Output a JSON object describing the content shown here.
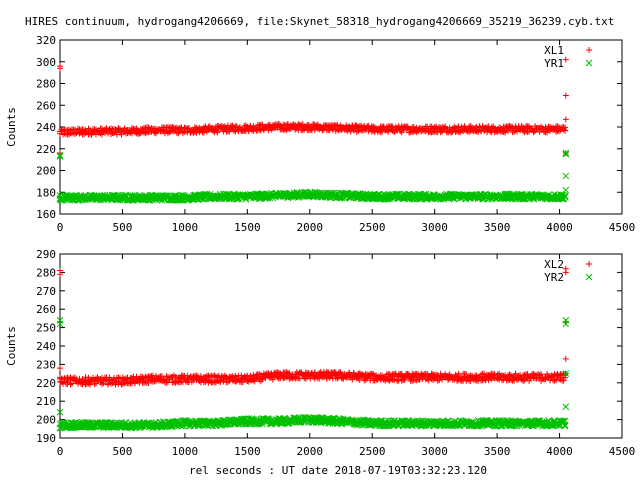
{
  "figure": {
    "title": "HIRES continuum, hydrogang4206669, file:Skynet_58318_hydrogang4206669_35219_36239.cyb.txt",
    "xlabel": "rel seconds : UT date 2018-07-19T03:32:23.120"
  },
  "colors": {
    "red": "#ff0000",
    "green": "#00c000"
  },
  "chart_data": [
    {
      "type": "scatter",
      "ylabel": "Counts",
      "xlim": [
        0,
        4500
      ],
      "ylim": [
        160,
        320
      ],
      "xticks": [
        0,
        500,
        1000,
        1500,
        2000,
        2500,
        3000,
        3500,
        4000,
        4500
      ],
      "yticks": [
        160,
        180,
        200,
        220,
        240,
        260,
        280,
        300,
        320
      ],
      "legend_position": "top-right",
      "series": [
        {
          "name": "XL1",
          "marker": "+",
          "color": "#ff0000",
          "band_x": [
            0,
            250,
            500,
            750,
            1000,
            1250,
            1500,
            1750,
            2000,
            2250,
            2500,
            2750,
            3000,
            3250,
            3500,
            3750,
            4050
          ],
          "band_y": [
            235,
            236,
            236,
            237,
            237,
            238,
            239,
            240,
            240,
            239,
            238,
            238,
            238,
            238,
            238,
            238,
            238
          ],
          "band_spread": 3,
          "outliers": [
            [
              0,
              296
            ],
            [
              0,
              294
            ],
            [
              0,
              216
            ],
            [
              4050,
              302
            ],
            [
              4050,
              269
            ],
            [
              4050,
              247
            ],
            [
              4050,
              216
            ]
          ]
        },
        {
          "name": "YR1",
          "marker": "x",
          "color": "#00c000",
          "band_x": [
            0,
            250,
            500,
            750,
            1000,
            1250,
            1500,
            1750,
            2000,
            2250,
            2500,
            2750,
            3000,
            3250,
            3500,
            3750,
            4050
          ],
          "band_y": [
            175,
            175,
            175,
            175,
            175,
            176,
            176,
            177,
            178,
            177,
            176,
            176,
            176,
            176,
            176,
            176,
            176
          ],
          "band_spread": 2.5,
          "outliers": [
            [
              0,
              214
            ],
            [
              0,
              213
            ],
            [
              4050,
              216
            ],
            [
              4050,
              215
            ],
            [
              4050,
              195
            ],
            [
              4050,
              182
            ]
          ]
        }
      ]
    },
    {
      "type": "scatter",
      "ylabel": "Counts",
      "xlim": [
        0,
        4500
      ],
      "ylim": [
        190,
        290
      ],
      "xticks": [
        0,
        500,
        1000,
        1500,
        2000,
        2500,
        3000,
        3500,
        4000,
        4500
      ],
      "yticks": [
        190,
        200,
        210,
        220,
        230,
        240,
        250,
        260,
        270,
        280,
        290
      ],
      "legend_position": "top-right",
      "series": [
        {
          "name": "XL2",
          "marker": "+",
          "color": "#ff0000",
          "band_x": [
            0,
            250,
            500,
            750,
            1000,
            1250,
            1500,
            1750,
            2000,
            2250,
            2500,
            2750,
            3000,
            3250,
            3500,
            3750,
            4050
          ],
          "band_y": [
            221,
            221,
            221,
            222,
            222,
            222,
            222,
            224,
            224,
            224,
            223,
            223,
            223,
            223,
            223,
            223,
            223
          ],
          "band_spread": 2,
          "outliers": [
            [
              0,
              281
            ],
            [
              0,
              279
            ],
            [
              0,
              228
            ],
            [
              4050,
              282
            ],
            [
              4050,
              280
            ],
            [
              4050,
              253
            ],
            [
              4050,
              233
            ],
            [
              4050,
              225
            ]
          ]
        },
        {
          "name": "YR2",
          "marker": "x",
          "color": "#00c000",
          "band_x": [
            0,
            250,
            500,
            750,
            1000,
            1250,
            1500,
            1750,
            2000,
            2250,
            2500,
            2750,
            3000,
            3250,
            3500,
            3750,
            4050
          ],
          "band_y": [
            197,
            197,
            197,
            197,
            198,
            198,
            199,
            199,
            200,
            199,
            198,
            198,
            198,
            198,
            198,
            198,
            198
          ],
          "band_spread": 1.6,
          "outliers": [
            [
              0,
              254
            ],
            [
              0,
              252
            ],
            [
              0,
              204
            ],
            [
              4050,
              254
            ],
            [
              4050,
              252
            ],
            [
              4050,
              225
            ],
            [
              4050,
              207
            ]
          ]
        }
      ]
    }
  ]
}
